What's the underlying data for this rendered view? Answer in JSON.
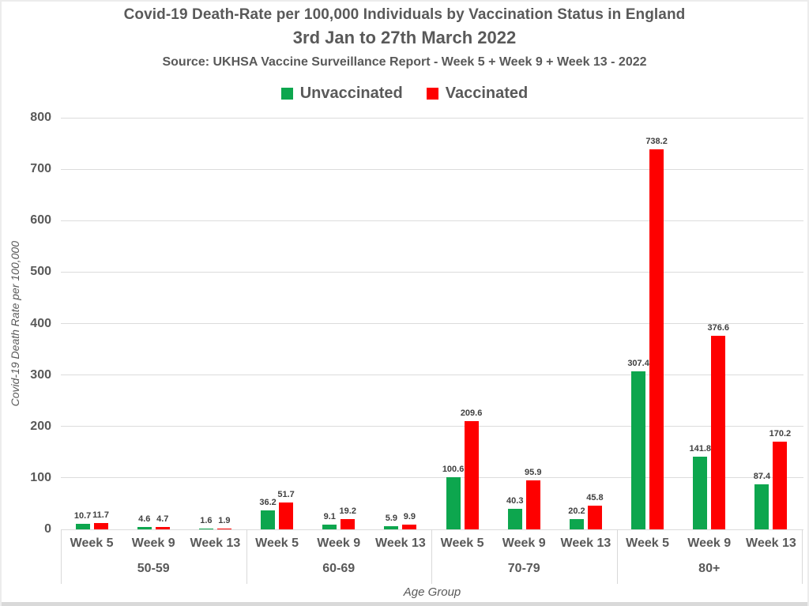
{
  "header": {
    "title_line1": "Covid-19 Death-Rate per 100,000 Individuals by Vaccination Status in England",
    "title_line2": "3rd Jan to 27th March 2022",
    "source": "Source: UKHSA Vaccine Surveillance Report - Week 5 + Week 9 + Week 13 - 2022"
  },
  "legend": [
    {
      "label": "Unvaccinated",
      "color": "#0DA64E"
    },
    {
      "label": "Vaccinated",
      "color": "#FE0000"
    }
  ],
  "chart_data": {
    "type": "bar",
    "title": "Covid-19 Death-Rate per 100,000 Individuals by Vaccination Status in England — 3rd Jan to 27th March 2022",
    "groups": [
      "50-59",
      "60-69",
      "70-79",
      "80+"
    ],
    "categories_per_group": [
      "Week 5",
      "Week 9",
      "Week 13"
    ],
    "series": [
      {
        "name": "Unvaccinated",
        "color": "#0DA64E",
        "values": [
          10.7,
          4.6,
          1.6,
          36.2,
          9.1,
          5.9,
          100.6,
          40.3,
          20.2,
          307.4,
          141.8,
          87.4
        ]
      },
      {
        "name": "Vaccinated",
        "color": "#FE0000",
        "values": [
          11.7,
          4.7,
          1.9,
          51.7,
          19.2,
          9.9,
          209.6,
          95.9,
          45.8,
          738.2,
          376.6,
          170.2
        ]
      }
    ],
    "xlabel": "Age Group",
    "ylabel": "Covid-19 Death Rate per 100,000",
    "ylim": [
      0,
      800
    ],
    "ytick_step": 100,
    "grid": true,
    "legend_position": "top"
  },
  "colors": {
    "text": "#595959",
    "data_label": "#404040",
    "gridline": "#dcdcdc",
    "frame_border": "#ececec",
    "bottom_strip": "#d9d9d9"
  }
}
